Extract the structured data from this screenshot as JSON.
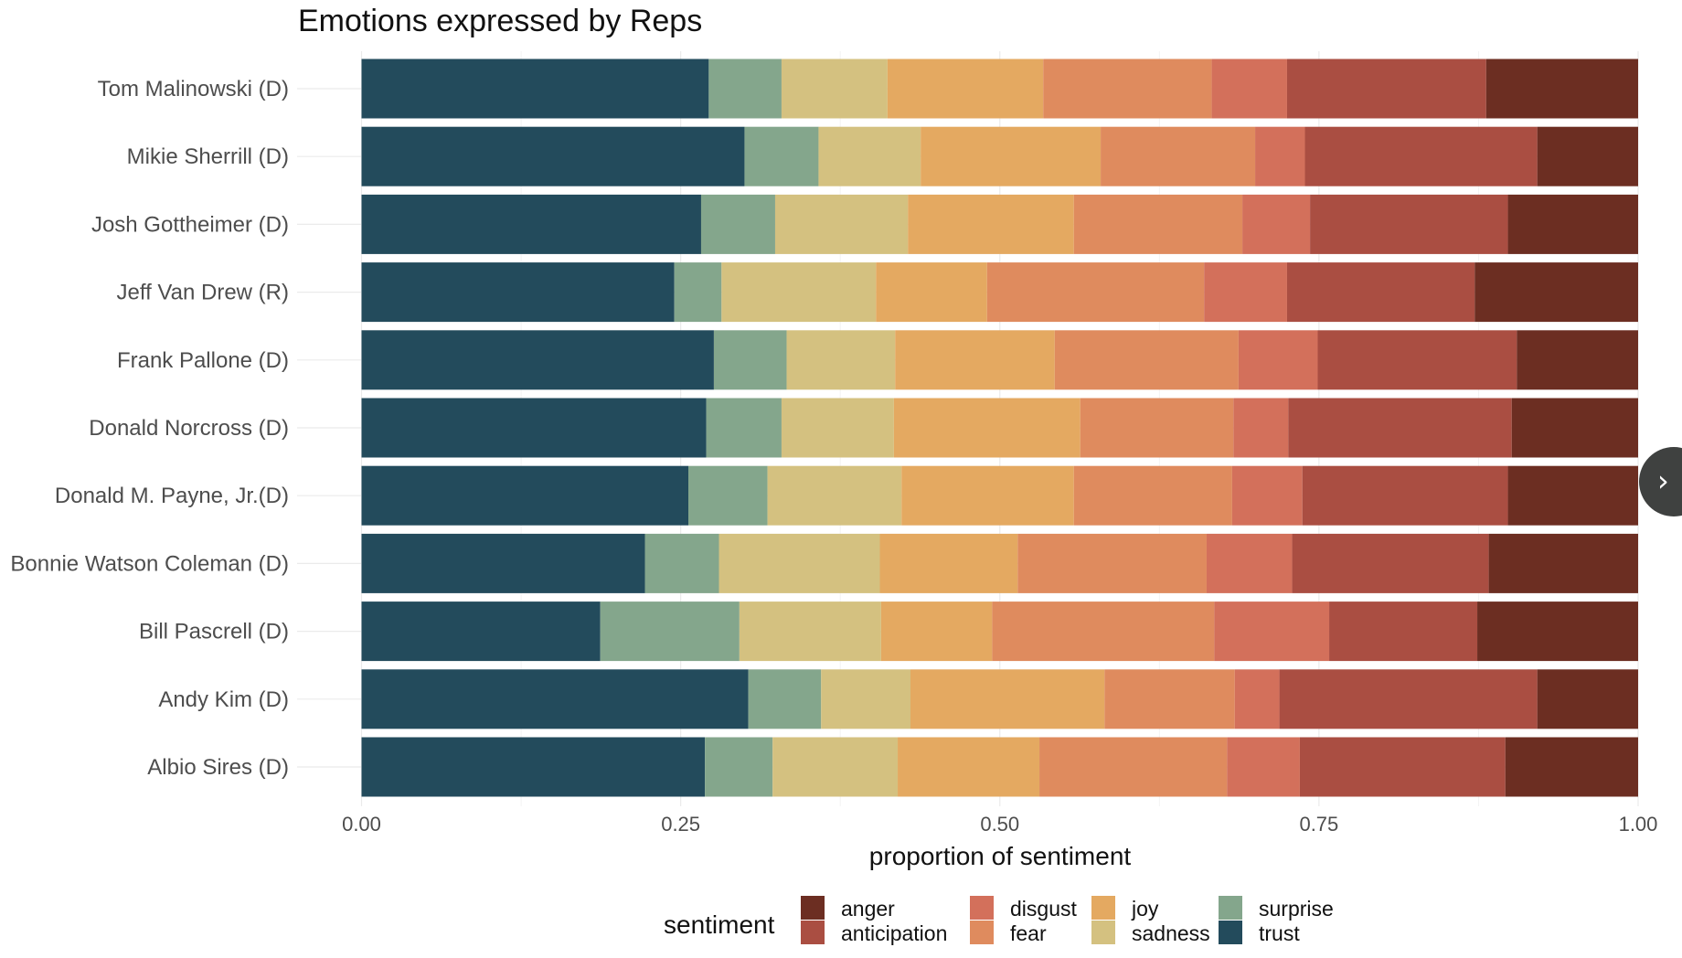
{
  "carousel": {
    "next_icon": "›"
  },
  "chart_data": {
    "type": "bar",
    "orientation": "horizontal",
    "stacked": true,
    "title": "Emotions expressed by Reps",
    "xlabel": "proportion of sentiment",
    "ylabel": "",
    "xlim": [
      0,
      1
    ],
    "xticks": [
      "0.00",
      "0.25",
      "0.50",
      "0.75",
      "1.00"
    ],
    "xtick_values": [
      0,
      0.25,
      0.5,
      0.75,
      1.0
    ],
    "grid": true,
    "legend": {
      "title": "sentiment",
      "position": "bottom",
      "entries": [
        "anger",
        "anticipation",
        "disgust",
        "fear",
        "joy",
        "sadness",
        "surprise",
        "trust"
      ]
    },
    "colors": {
      "trust": "#234b5c",
      "surprise": "#84a68c",
      "sadness": "#d4c180",
      "joy": "#e4a961",
      "fear": "#df8b5e",
      "disgust": "#d3705b",
      "anticipation": "#aa4e42",
      "anger": "#6c2e22"
    },
    "stack_order": [
      "trust",
      "surprise",
      "sadness",
      "joy",
      "fear",
      "disgust",
      "anticipation",
      "anger"
    ],
    "categories": [
      "Tom Malinowski (D)",
      "Mikie Sherrill (D)",
      "Josh Gottheimer (D)",
      "Jeff Van Drew (R)",
      "Frank Pallone (D)",
      "Donald Norcross (D)",
      "Donald M. Payne, Jr.(D)",
      "Bonnie Watson Coleman (D)",
      "Bill Pascrell (D)",
      "Andy Kim (D)",
      "Albio Sires (D)"
    ],
    "series": [
      {
        "name": "trust",
        "values": [
          0.272,
          0.3,
          0.266,
          0.245,
          0.276,
          0.27,
          0.256,
          0.222,
          0.187,
          0.303,
          0.269
        ]
      },
      {
        "name": "surprise",
        "values": [
          0.057,
          0.058,
          0.058,
          0.037,
          0.057,
          0.059,
          0.062,
          0.058,
          0.109,
          0.057,
          0.053
        ]
      },
      {
        "name": "sadness",
        "values": [
          0.083,
          0.08,
          0.104,
          0.121,
          0.085,
          0.088,
          0.105,
          0.126,
          0.111,
          0.07,
          0.098
        ]
      },
      {
        "name": "joy",
        "values": [
          0.122,
          0.141,
          0.13,
          0.087,
          0.125,
          0.146,
          0.135,
          0.108,
          0.087,
          0.152,
          0.111
        ]
      },
      {
        "name": "fear",
        "values": [
          0.132,
          0.121,
          0.132,
          0.17,
          0.144,
          0.12,
          0.124,
          0.148,
          0.174,
          0.102,
          0.147
        ]
      },
      {
        "name": "disgust",
        "values": [
          0.059,
          0.039,
          0.053,
          0.065,
          0.062,
          0.043,
          0.055,
          0.067,
          0.09,
          0.035,
          0.057
        ]
      },
      {
        "name": "anticipation",
        "values": [
          0.156,
          0.182,
          0.155,
          0.147,
          0.156,
          0.175,
          0.161,
          0.154,
          0.116,
          0.202,
          0.161
        ]
      },
      {
        "name": "anger",
        "values": [
          0.119,
          0.079,
          0.102,
          0.128,
          0.095,
          0.099,
          0.102,
          0.117,
          0.126,
          0.079,
          0.104
        ]
      }
    ]
  }
}
